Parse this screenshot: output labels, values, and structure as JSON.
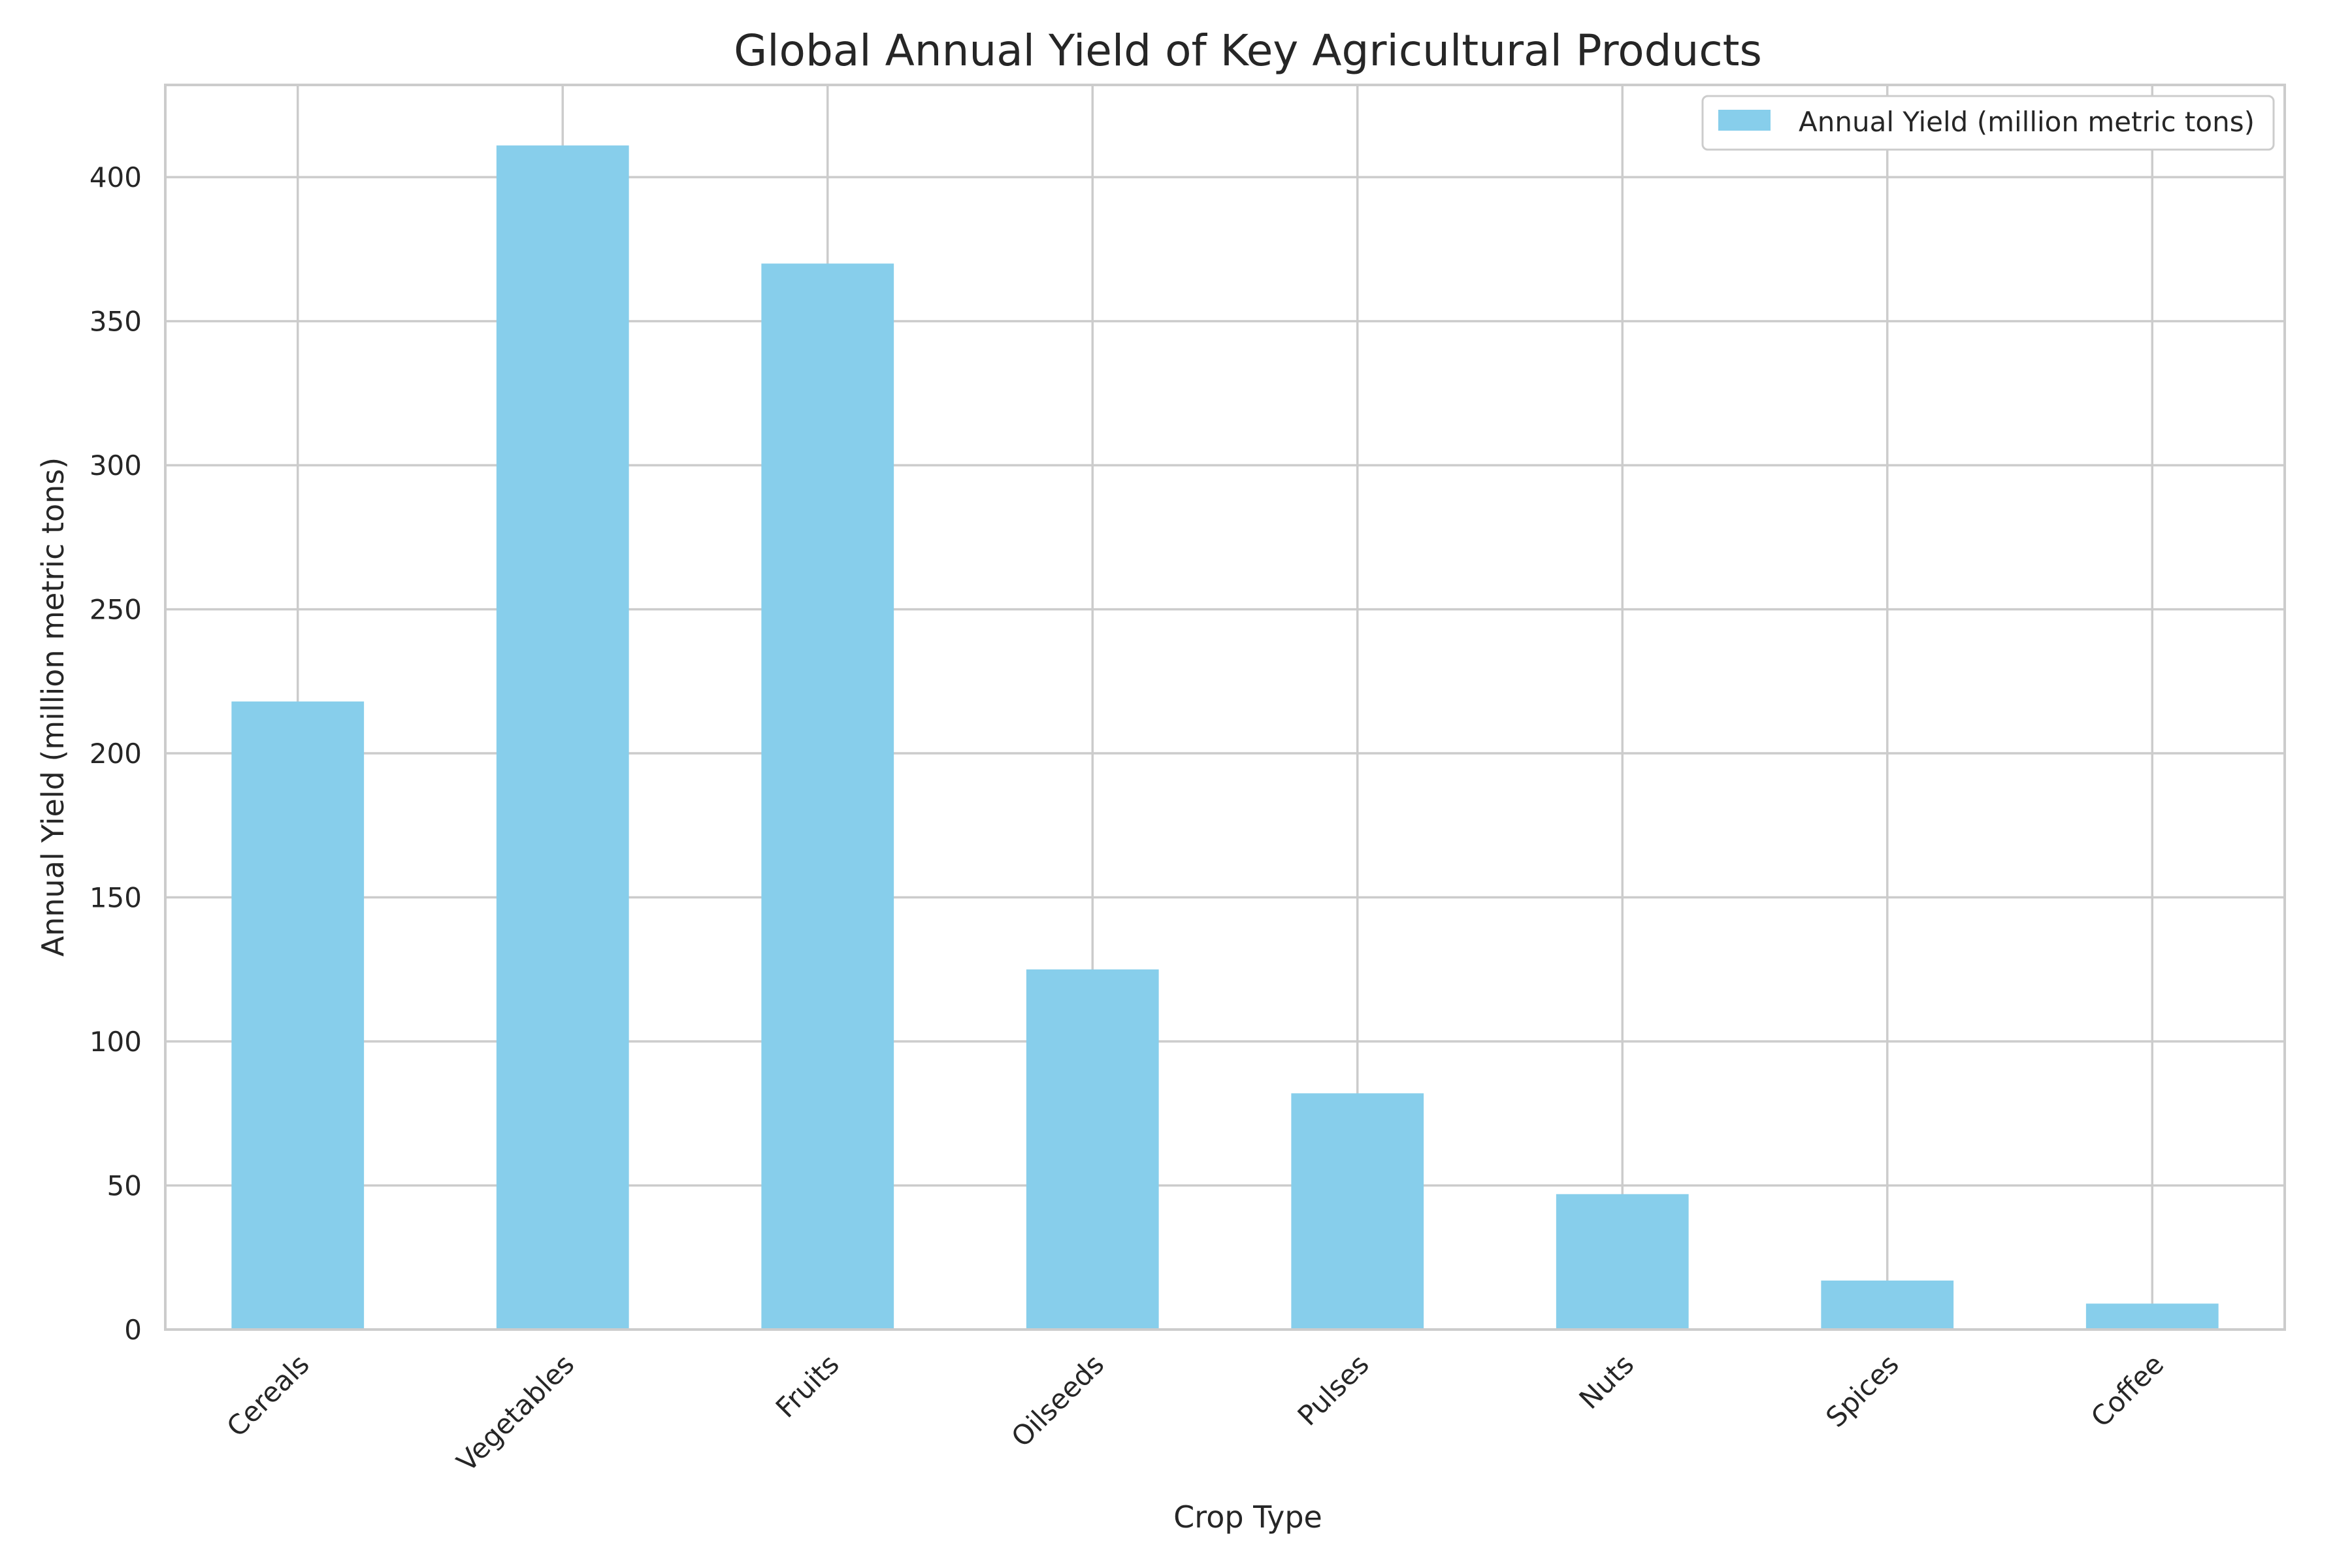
{
  "chart_data": {
    "type": "bar",
    "title": "Global Annual Yield of Key Agricultural Products",
    "xlabel": "Crop Type",
    "ylabel": "Annual Yield (million metric tons)",
    "categories": [
      "Cereals",
      "Vegetables",
      "Fruits",
      "Oilseeds",
      "Pulses",
      "Nuts",
      "Spices",
      "Coffee"
    ],
    "series": [
      {
        "name": "Annual Yield (million metric tons)",
        "values": [
          218,
          411,
          370,
          125,
          82,
          47,
          17,
          9
        ]
      }
    ],
    "ylim": [
      0,
      432
    ],
    "yticks": [
      0,
      50,
      100,
      150,
      200,
      250,
      300,
      350,
      400
    ],
    "grid": true,
    "legend_position": "top-right",
    "bar_color": "#87CEEB"
  }
}
